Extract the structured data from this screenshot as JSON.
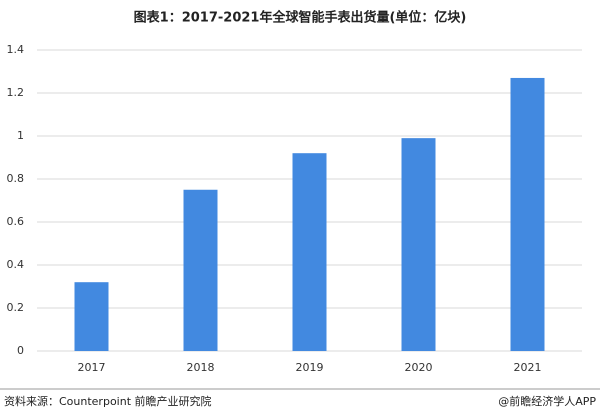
{
  "chart_data": {
    "type": "bar",
    "title": "图表1：2017-2021年全球智能手表出货量(单位：亿块)",
    "categories": [
      "2017",
      "2018",
      "2019",
      "2020",
      "2021"
    ],
    "values": [
      0.32,
      0.75,
      0.92,
      0.99,
      1.27
    ],
    "color": "#4289e0",
    "ylim": [
      0,
      1.4
    ],
    "yticks": [
      0,
      0.2,
      0.4,
      0.6,
      0.8,
      1,
      1.2,
      1.4
    ],
    "grid": true
  },
  "footer": {
    "source": "资料来源：Counterpoint 前瞻产业研究院",
    "credit": "@前瞻经济学人APP"
  }
}
